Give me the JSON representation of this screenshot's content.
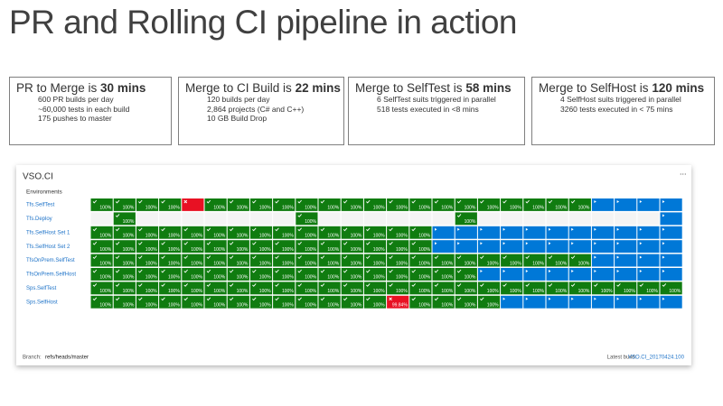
{
  "title": "PR and Rolling CI pipeline in action",
  "boxes": [
    {
      "heading": "PR to Merge is",
      "highlight": "30 mins",
      "lines": [
        "600 PR builds per day",
        "~60,000 tests in each build",
        "175 pushes to master"
      ]
    },
    {
      "heading": "Merge to CI Build is",
      "highlight": "22 mins",
      "lines": [
        "120 builds per day",
        "2,864 projects (C# and C++)",
        "10 GB Build Drop"
      ]
    },
    {
      "heading": "Merge to SelfTest is",
      "highlight": "58 mins",
      "lines": [
        "6 SelfTest suits triggered in parallel",
        "518 tests executed  in <8 mins"
      ]
    },
    {
      "heading": "Merge to SelfHost is",
      "highlight": "120 mins",
      "lines": [
        "4 SelfHost suits triggered in parallel",
        "3260 tests executed  in < 75 mins"
      ]
    }
  ],
  "dashboard": {
    "title": "VSO.CI",
    "menu": "...",
    "environments_label": "Environments",
    "rows": [
      {
        "name": "Tfs.SelfTest",
        "states": "ggggrgggggggggggggggggbbbb",
        "labels": [
          "100%",
          "100%",
          "100%",
          "100%",
          null,
          "100%",
          "100%",
          "100%",
          "100%",
          "100%",
          "100%",
          "100%",
          "100%",
          "100%",
          "100%",
          "100%",
          "100%",
          "100%",
          "100%",
          "100%",
          "100%",
          "100%",
          null,
          null,
          null,
          null
        ]
      },
      {
        "name": "Tfs.Deploy",
        "states": "egeeeeeeegeeeeeegeeeeeeeeb",
        "labels": [
          null,
          "100%",
          null,
          null,
          null,
          null,
          null,
          null,
          null,
          "100%",
          null,
          null,
          null,
          null,
          null,
          null,
          "100%",
          null,
          null,
          null,
          null,
          null,
          null,
          null,
          null,
          null
        ]
      },
      {
        "name": "Tfs.SelfHost Set 1",
        "states": "gggggggggggggggbbbbbbbbbbb",
        "labels": [
          "100%",
          "100%",
          "100%",
          "100%",
          "100%",
          "100%",
          "100%",
          "100%",
          "100%",
          "100%",
          "100%",
          "100%",
          "100%",
          "100%",
          "100%",
          null,
          null,
          null,
          null,
          null,
          null,
          null,
          null,
          null,
          null,
          null
        ]
      },
      {
        "name": "Tfs.SelfHost Set 2",
        "states": "gggggggggggggggbbbbbbbbbbb",
        "labels": [
          "100%",
          "100%",
          "100%",
          "100%",
          "100%",
          "100%",
          "100%",
          "100%",
          "100%",
          "100%",
          "100%",
          "100%",
          "100%",
          "100%",
          "100%",
          null,
          null,
          null,
          null,
          null,
          null,
          null,
          null,
          null,
          null,
          null
        ]
      },
      {
        "name": "TfsOnPrem.SelfTest",
        "states": "ggggggggggggggggggggggbbbb",
        "labels": [
          "100%",
          "100%",
          "100%",
          "100%",
          "100%",
          "100%",
          "100%",
          "100%",
          "100%",
          "100%",
          "100%",
          "100%",
          "100%",
          "100%",
          "100%",
          "100%",
          "100%",
          "100%",
          "100%",
          "100%",
          "100%",
          "100%",
          null,
          null,
          null,
          null
        ]
      },
      {
        "name": "TfsOnPrem.SelfHost",
        "states": "gggggggggggggggggbbbbbbbbb",
        "labels": [
          "100%",
          "100%",
          "100%",
          "100%",
          "100%",
          "100%",
          "100%",
          "100%",
          "100%",
          "100%",
          "100%",
          "100%",
          "100%",
          "100%",
          "100%",
          "100%",
          "100%",
          null,
          null,
          null,
          null,
          null,
          null,
          null,
          null,
          null
        ]
      },
      {
        "name": "Sps.SelfTest",
        "states": "gggggggggggggggggggggggggg",
        "labels": [
          "100%",
          "100%",
          "100%",
          "100%",
          "100%",
          "100%",
          "100%",
          "100%",
          "100%",
          "100%",
          "100%",
          "100%",
          "100%",
          "100%",
          "100%",
          "100%",
          "100%",
          "100%",
          "100%",
          "100%",
          "100%",
          "100%",
          "100%",
          "100%",
          "100%",
          "100%"
        ]
      },
      {
        "name": "Sps.SelfHost",
        "states": "gggggggggggggrggggbbbbbbbb",
        "labels": [
          "100%",
          "100%",
          "100%",
          "100%",
          "100%",
          "100%",
          "100%",
          "100%",
          "100%",
          "100%",
          "100%",
          "100%",
          "100%",
          "99.84%",
          "100%",
          "100%",
          "100%",
          "100%",
          null,
          null,
          null,
          null,
          null,
          null,
          null,
          null
        ]
      }
    ],
    "branch_label": "Branch:",
    "branch": "refs/heads/master",
    "latest_label": "Latest build:",
    "latest": "VSO.CI_20170424.100"
  }
}
